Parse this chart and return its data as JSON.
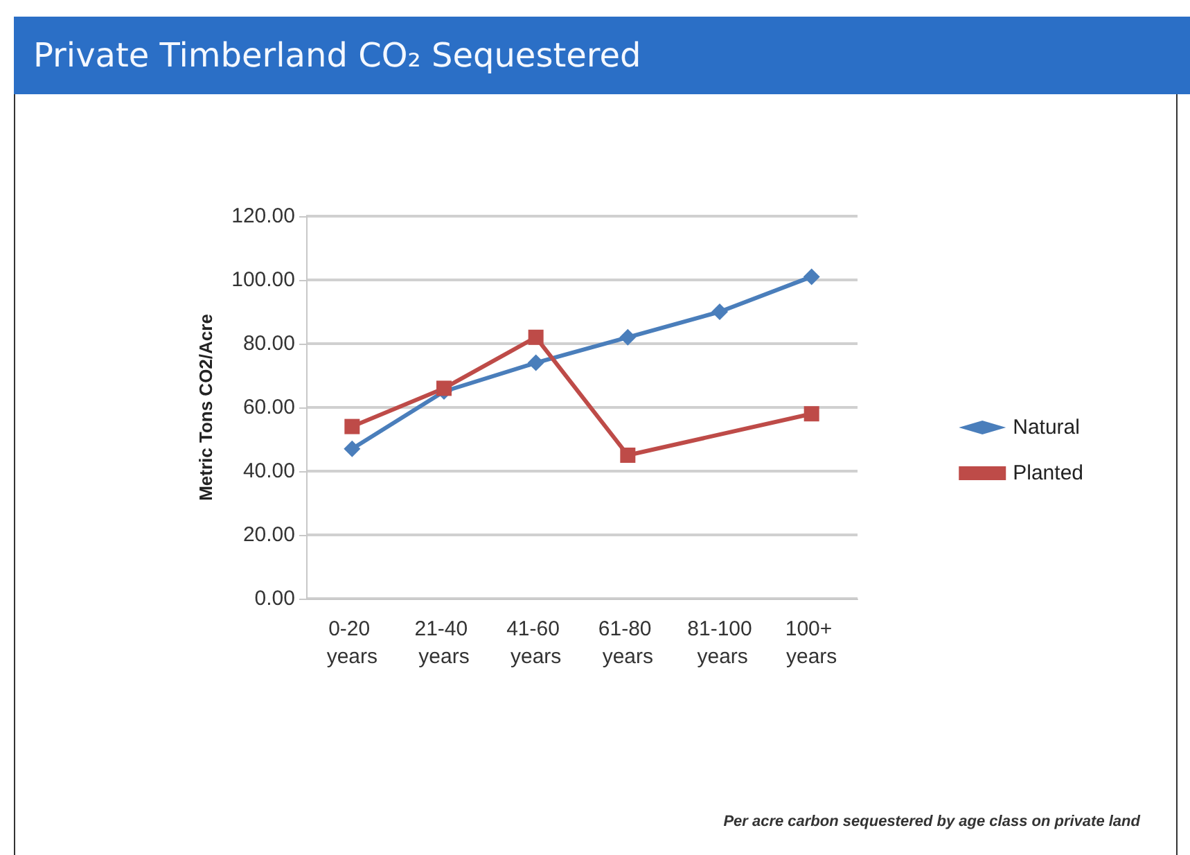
{
  "chart_data": {
    "type": "line",
    "title": "Private Timberland CO₂ Sequestered",
    "ylabel": "Metric Tons CO2/Acre",
    "categories": [
      "0-20 years",
      "21-40 years",
      "41-60 years",
      "61-80 years",
      "81-100 years",
      "100+ years"
    ],
    "series": [
      {
        "name": "Natural",
        "color": "#4a7ebb",
        "marker": "diamond",
        "values": [
          47,
          65,
          74,
          82,
          90,
          101
        ]
      },
      {
        "name": "Planted",
        "color": "#be4b48",
        "marker": "square",
        "x": [
          "0-20 years",
          "21-40 years",
          "41-60 years",
          "61-80 years",
          "100+ years"
        ],
        "values": [
          54,
          66,
          82,
          45,
          58
        ]
      }
    ],
    "ylim": [
      0,
      120
    ],
    "yticks": [
      {
        "value": 0,
        "label": "0.00"
      },
      {
        "value": 20,
        "label": "20.00"
      },
      {
        "value": 40,
        "label": "40.00"
      },
      {
        "value": 60,
        "label": "60.00"
      },
      {
        "value": 80,
        "label": "80.00"
      },
      {
        "value": 100,
        "label": "100.00"
      },
      {
        "value": 120,
        "label": "120.00"
      }
    ],
    "grid": "y",
    "legend": "right",
    "line_style": "solid",
    "annotations": [
      "Per acre carbon sequestered by age class on private land"
    ]
  }
}
